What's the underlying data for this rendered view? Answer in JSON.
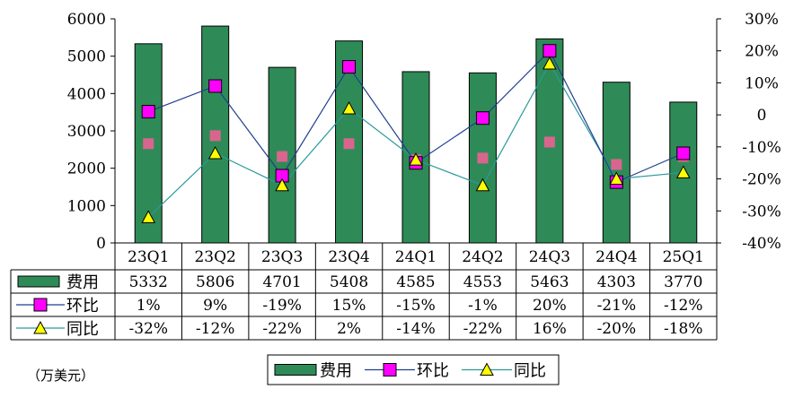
{
  "colors": {
    "bar": "#2E8B57",
    "huanbi_line": "#1F3F8F",
    "huanbi_marker": "#FF00FF",
    "tongbi_line": "#2A9A9A",
    "tongbi_marker": "#FFFF00",
    "ghost_marker": "#D9658F"
  },
  "chart_data": {
    "type": "bar",
    "categories": [
      "23Q1",
      "23Q2",
      "23Q3",
      "23Q4",
      "24Q1",
      "24Q2",
      "24Q3",
      "24Q4",
      "25Q1"
    ],
    "series": [
      {
        "name": "费用",
        "type": "bar",
        "axis": "left",
        "values": [
          5332,
          5806,
          4701,
          5408,
          4585,
          4553,
          5463,
          4303,
          3770
        ]
      },
      {
        "name": "环比",
        "type": "line",
        "axis": "right",
        "values": [
          0.01,
          0.09,
          -0.19,
          0.15,
          -0.15,
          -0.01,
          0.2,
          -0.21,
          -0.12
        ]
      },
      {
        "name": "同比",
        "type": "line",
        "axis": "right",
        "values": [
          -0.32,
          -0.12,
          -0.22,
          0.02,
          -0.14,
          -0.22,
          0.16,
          -0.2,
          -0.18
        ]
      }
    ],
    "extra_markers": [
      -0.09,
      -0.065,
      -0.13,
      -0.09,
      -0.14,
      -0.135,
      -0.085,
      -0.155,
      -0.13
    ],
    "y_left": {
      "min": 0,
      "max": 6000,
      "ticks": [
        "0",
        "1000",
        "2000",
        "3000",
        "4000",
        "5000",
        "6000"
      ]
    },
    "y_right": {
      "min": -0.4,
      "max": 0.3,
      "ticks": [
        "-40%",
        "-30%",
        "-20%",
        "-10%",
        "0",
        "10%",
        "20%",
        "30%"
      ]
    },
    "table_rows": [
      {
        "label": "费用",
        "cells": [
          "5332",
          "5806",
          "4701",
          "5408",
          "4585",
          "4553",
          "5463",
          "4303",
          "3770"
        ]
      },
      {
        "label": "环比",
        "cells": [
          "1%",
          "9%",
          "-19%",
          "15%",
          "-15%",
          "-1%",
          "20%",
          "-21%",
          "-12%"
        ]
      },
      {
        "label": "同比",
        "cells": [
          "-32%",
          "-12%",
          "-22%",
          "2%",
          "-14%",
          "-22%",
          "16%",
          "-20%",
          "-18%"
        ]
      }
    ],
    "legend": [
      "费用",
      "环比",
      "同比"
    ],
    "unit_label": "（万美元）",
    "grid": false
  }
}
